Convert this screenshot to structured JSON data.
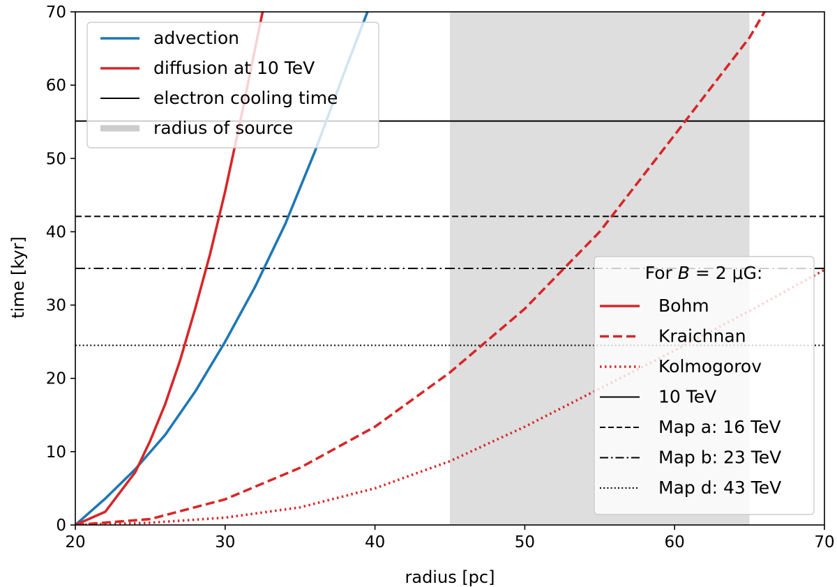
{
  "chart_data": {
    "type": "line",
    "xlabel": "radius [pc]",
    "ylabel": "time [kyr]",
    "xlim": [
      20,
      70
    ],
    "ylim": [
      0,
      70
    ],
    "xticks": [
      20,
      30,
      40,
      50,
      60,
      70
    ],
    "yticks": [
      0,
      10,
      20,
      30,
      40,
      50,
      60,
      70
    ],
    "source_region": {
      "name": "radius of source",
      "x_range": [
        45,
        65
      ],
      "color": "#dedede"
    },
    "curves": [
      {
        "id": "advection",
        "name": "advection",
        "color": "#1f77b4",
        "style": "solid",
        "x": [
          20,
          22,
          24,
          26,
          28,
          30,
          32,
          34,
          36,
          38,
          39.5
        ],
        "y": [
          0,
          3.6,
          7.6,
          12.3,
          18.2,
          25.0,
          32.5,
          41.0,
          51.0,
          62.0,
          70
        ]
      },
      {
        "id": "bohm",
        "name": "Bohm",
        "color": "#d62728",
        "style": "solid",
        "x": [
          20,
          22,
          24,
          25,
          26,
          27,
          28,
          29,
          30,
          31,
          32,
          32.5
        ],
        "y": [
          0,
          1.8,
          7.2,
          11.5,
          16.5,
          22.5,
          29.5,
          37.0,
          45.5,
          55.0,
          65.0,
          70
        ]
      },
      {
        "id": "kraichnan",
        "name": "Kraichnan",
        "color": "#d62728",
        "style": "dashed",
        "x": [
          20,
          25,
          30,
          35,
          40,
          45,
          50,
          55,
          60,
          65,
          66
        ],
        "y": [
          0,
          0.8,
          3.5,
          7.8,
          13.4,
          20.8,
          29.5,
          40.0,
          53.2,
          66.5,
          70
        ]
      },
      {
        "id": "kolmogorov",
        "name": "Kolmogorov",
        "color": "#d62728",
        "style": "dotted",
        "x": [
          20,
          25,
          30,
          35,
          40,
          45,
          50,
          55,
          60,
          65,
          70
        ],
        "y": [
          0,
          0.3,
          1.0,
          2.4,
          5.0,
          8.7,
          13.4,
          18.6,
          23.8,
          29.2,
          34.8
        ]
      }
    ],
    "hlines": [
      {
        "id": "cooling-10tev",
        "name": "10 TeV",
        "y": 55.1,
        "style": "solid"
      },
      {
        "id": "cooling-map-a",
        "name": "Map a: 16 TeV",
        "y": 42.1,
        "style": "dashed"
      },
      {
        "id": "cooling-map-b",
        "name": "Map b: 23 TeV",
        "y": 35.0,
        "style": "dashdot"
      },
      {
        "id": "cooling-map-d",
        "name": "Map d: 43 TeV",
        "y": 24.5,
        "style": "dotted"
      }
    ],
    "legend_main": {
      "position": "upper-left",
      "entries": [
        {
          "label": "advection",
          "color": "#1f77b4",
          "style": "solid"
        },
        {
          "label": "diffusion at 10 TeV",
          "color": "#d62728",
          "style": "solid"
        },
        {
          "label": "electron cooling time",
          "color": "#000000",
          "style": "thin"
        },
        {
          "label": "radius of source",
          "color": "#cccccc",
          "style": "band"
        }
      ]
    },
    "legend_b": {
      "position": "lower-right",
      "title_prefix": "For ",
      "title_var": "B",
      "title_rest": " = 2 μG:",
      "entries": [
        {
          "label": "Bohm",
          "color": "#d62728",
          "style": "solid"
        },
        {
          "label": "Kraichnan",
          "color": "#d62728",
          "style": "dashed"
        },
        {
          "label": "Kolmogorov",
          "color": "#d62728",
          "style": "dotted"
        },
        {
          "label": "10 TeV",
          "color": "#000000",
          "style": "thin"
        },
        {
          "label": "Map a: 16 TeV",
          "color": "#000000",
          "style": "thin-dashed"
        },
        {
          "label": "Map b: 23 TeV",
          "color": "#000000",
          "style": "thin-dashdot"
        },
        {
          "label": "Map d: 43 TeV",
          "color": "#000000",
          "style": "thin-dotted"
        }
      ]
    }
  }
}
